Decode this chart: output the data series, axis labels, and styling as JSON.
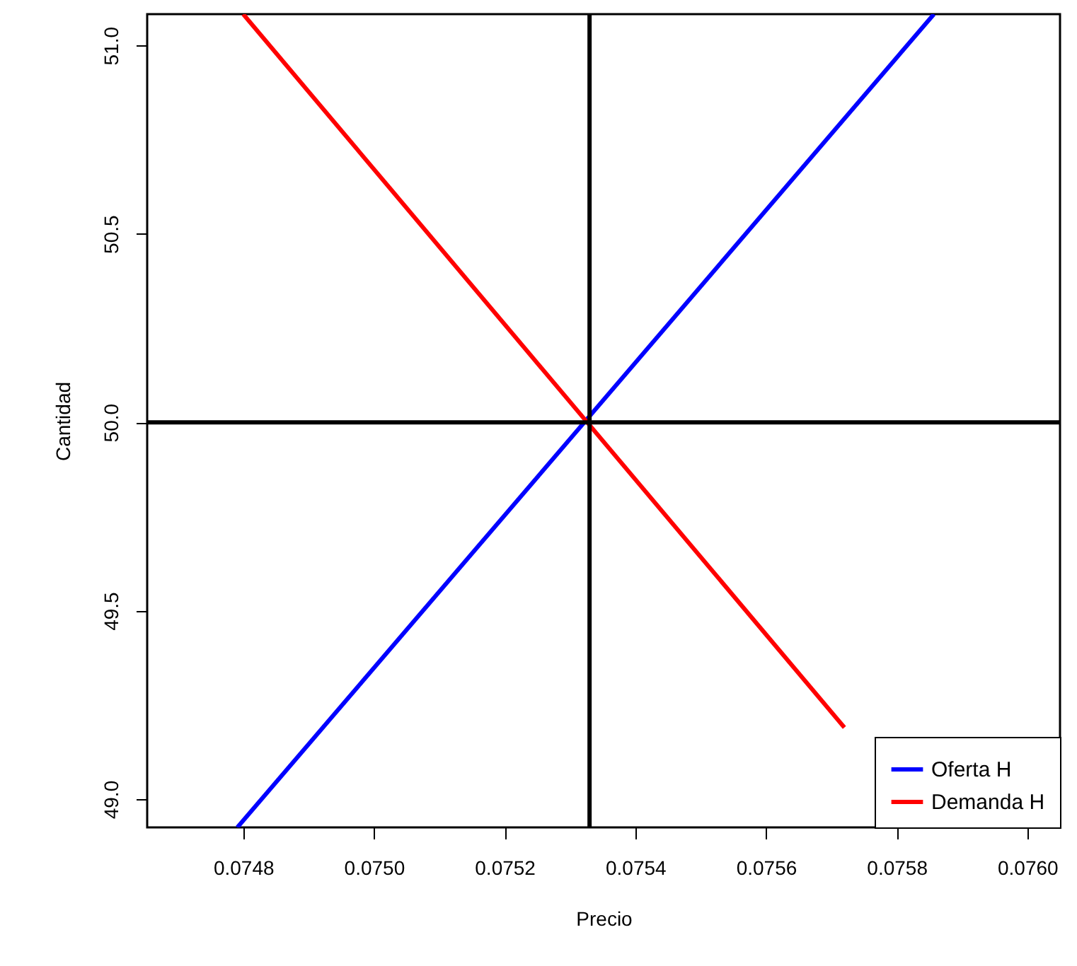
{
  "chart_data": {
    "type": "line",
    "xlabel": "Precio",
    "ylabel": "Cantidad",
    "series": [
      {
        "name": "Oferta H",
        "color": "#0000ff",
        "x": [
          0.074791,
          0.075857
        ],
        "values": [
          48.925,
          51.083
        ]
      },
      {
        "name": "Demanda H",
        "color": "#ff0000",
        "x": [
          0.0748,
          0.07572
        ],
        "values": [
          51.083,
          49.19
        ]
      }
    ],
    "xlim": [
      0.074653,
      0.07605
    ],
    "ylim": [
      48.925,
      51.083
    ],
    "xticks": [
      {
        "value": 0.0748,
        "label": "0.0748"
      },
      {
        "value": 0.075,
        "label": "0.0750"
      },
      {
        "value": 0.0752,
        "label": "0.0752"
      },
      {
        "value": 0.0754,
        "label": "0.0754"
      },
      {
        "value": 0.0756,
        "label": "0.0756"
      },
      {
        "value": 0.0758,
        "label": "0.0758"
      },
      {
        "value": 0.076,
        "label": "0.0760"
      }
    ],
    "yticks": [
      {
        "value": 49,
        "label": "49.0"
      },
      {
        "value": 49.5,
        "label": "49.5"
      },
      {
        "value": 50,
        "label": "50.0"
      },
      {
        "value": 50.5,
        "label": "50.5"
      },
      {
        "value": 51,
        "label": "51.0"
      }
    ],
    "ref_lines": [
      {
        "axis": "x",
        "value": 0.07533,
        "color": "#000000"
      },
      {
        "axis": "y",
        "value": 50,
        "color": "#000000"
      }
    ],
    "grid": false,
    "legend": "bottom right",
    "line_style": "solid",
    "marker": "none"
  }
}
